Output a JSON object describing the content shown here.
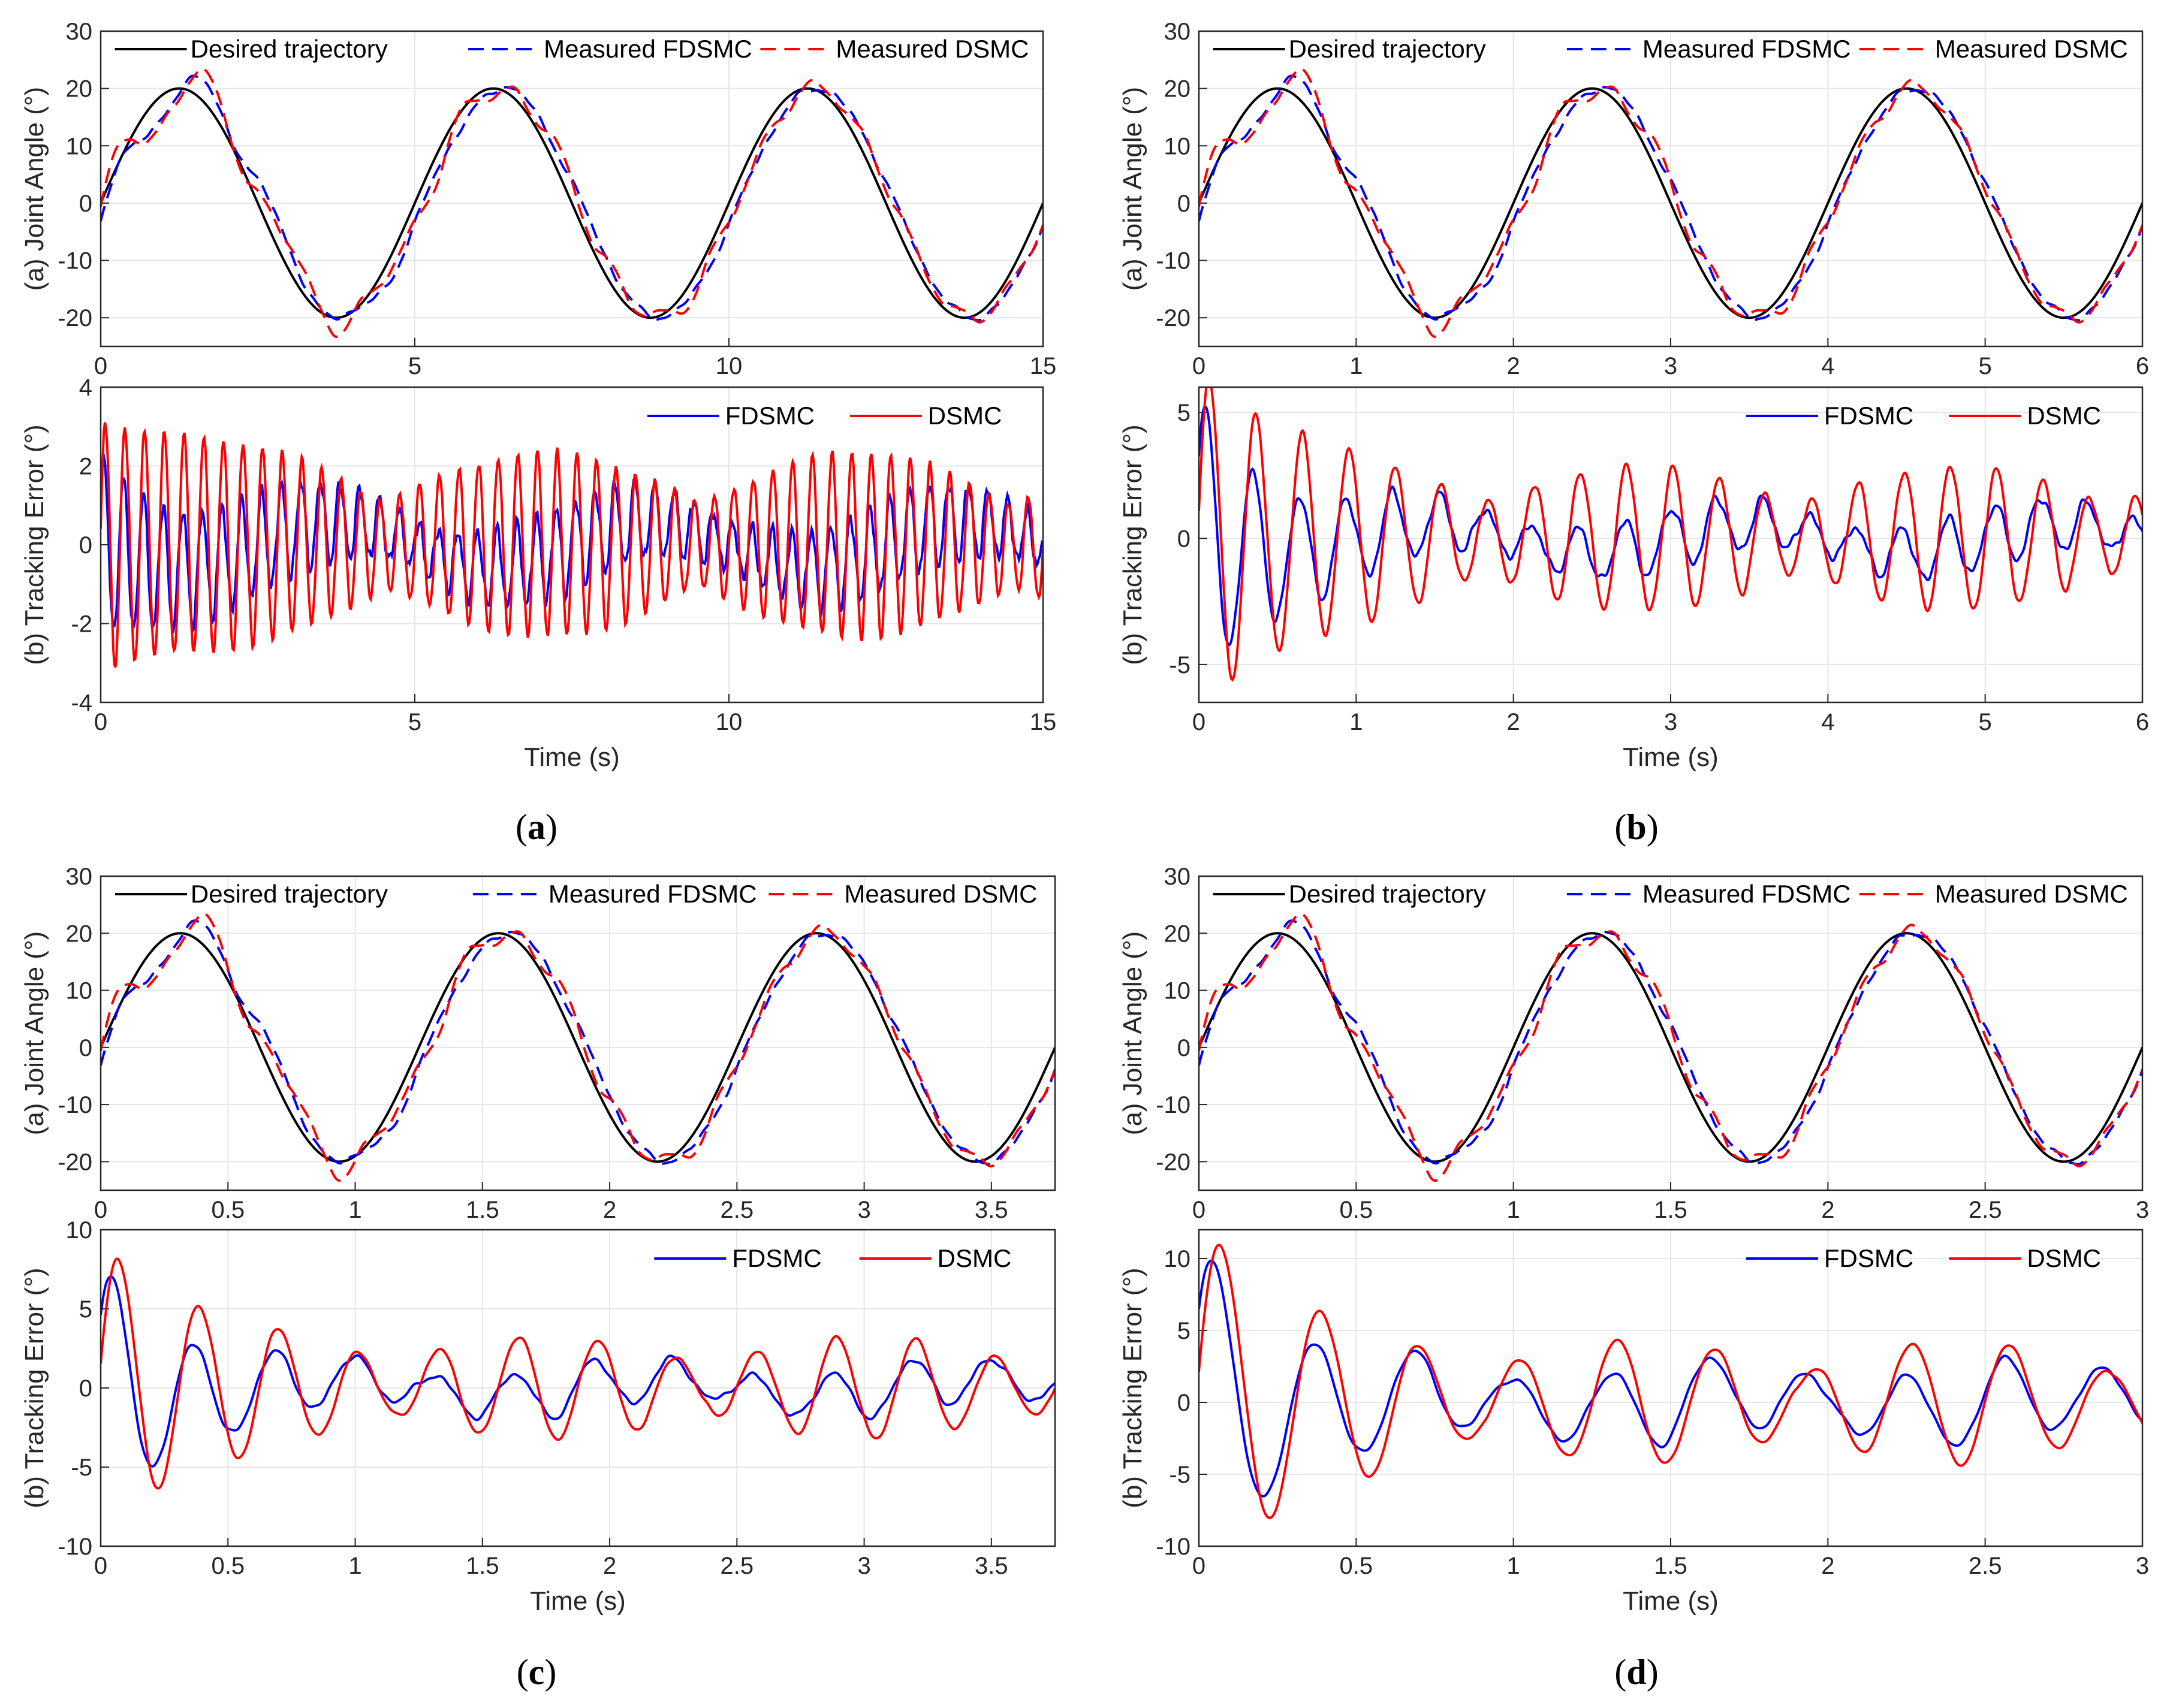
{
  "colors": {
    "desired": "#000000",
    "fdsmc": "#0000ff",
    "dsmc": "#ff0000",
    "grid": "#e6e6e6",
    "axis": "#262626"
  },
  "chart_data": [
    {
      "panel_label": "a",
      "caption": {
        "open": "(",
        "letter": "a",
        "close": ")"
      },
      "angle_chart": {
        "type": "line",
        "ylabel": "(a) Joint Angle (°)",
        "xlim": [
          0,
          15
        ],
        "ylim": [
          -25,
          30
        ],
        "xticks": [
          "0",
          "5",
          "10",
          "15"
        ],
        "xtick_values": [
          0,
          5,
          10,
          15
        ],
        "yticks": [
          "-20",
          "-10",
          "0",
          "10",
          "20",
          "30"
        ],
        "ytick_values": [
          -20,
          -10,
          0,
          10,
          20,
          30
        ],
        "period": 5,
        "amplitude": 20,
        "legend": [
          "Desired trajectory",
          "Measured FDSMC",
          "Measured DSMC"
        ]
      },
      "error_chart": {
        "type": "line",
        "ylabel": "(b) Tracking Error (°)",
        "xlabel": "Time (s)",
        "xlim": [
          0,
          15
        ],
        "ylim": [
          -4,
          4
        ],
        "xticks": [
          "0",
          "5",
          "10",
          "15"
        ],
        "xtick_values": [
          0,
          5,
          10,
          15
        ],
        "yticks": [
          "-4",
          "-2",
          "0",
          "2",
          "4"
        ],
        "ytick_values": [
          -4,
          -2,
          0,
          2,
          4
        ],
        "legend": [
          "FDSMC",
          "DSMC"
        ],
        "fdsmc_amp": 1.4,
        "dsmc_amp": 2.6,
        "osc_freq": 2.0,
        "init_amp": 1.8
      }
    },
    {
      "panel_label": "b",
      "caption": {
        "open": "(",
        "letter": "b",
        "close": ")"
      },
      "angle_chart": {
        "type": "line",
        "ylabel": "(a) Joint Angle (°)",
        "xlim": [
          0,
          6
        ],
        "ylim": [
          -25,
          30
        ],
        "xticks": [
          "0",
          "1",
          "2",
          "3",
          "4",
          "5",
          "6"
        ],
        "xtick_values": [
          0,
          1,
          2,
          3,
          4,
          5,
          6
        ],
        "yticks": [
          "-20",
          "-10",
          "0",
          "10",
          "20",
          "30"
        ],
        "ytick_values": [
          -20,
          -10,
          0,
          10,
          20,
          30
        ],
        "period": 2,
        "amplitude": 20,
        "legend": [
          "Desired trajectory",
          "Measured FDSMC",
          "Measured DSMC"
        ]
      },
      "error_chart": {
        "type": "line",
        "ylabel": "(b) Tracking Error (°)",
        "xlabel": "Time (s)",
        "xlim": [
          0,
          6
        ],
        "ylim": [
          -6.5,
          6
        ],
        "xticks": [
          "0",
          "1",
          "2",
          "3",
          "4",
          "5",
          "6"
        ],
        "xtick_values": [
          0,
          1,
          2,
          3,
          4,
          5,
          6
        ],
        "yticks": [
          "-5",
          "0",
          "5"
        ],
        "ytick_values": [
          -5,
          0,
          5
        ],
        "legend": [
          "FDSMC",
          "DSMC"
        ],
        "fdsmc_amp": 1.5,
        "dsmc_amp": 3.2,
        "osc_freq": 3.4,
        "init_amp": 5.2
      }
    },
    {
      "panel_label": "c",
      "caption": {
        "open": "(",
        "letter": "c",
        "close": ")"
      },
      "angle_chart": {
        "type": "line",
        "ylabel": "(a) Joint Angle (°)",
        "xlim": [
          0,
          3.75
        ],
        "ylim": [
          -25,
          30
        ],
        "xticks": [
          "0",
          "0.5",
          "1",
          "1.5",
          "2",
          "2.5",
          "3",
          "3.5"
        ],
        "xtick_values": [
          0,
          0.5,
          1,
          1.5,
          2,
          2.5,
          3,
          3.5
        ],
        "yticks": [
          "-20",
          "-10",
          "0",
          "10",
          "20",
          "30"
        ],
        "ytick_values": [
          -20,
          -10,
          0,
          10,
          20,
          30
        ],
        "period": 1.25,
        "amplitude": 20,
        "legend": [
          "Desired trajectory",
          "Measured FDSMC",
          "Measured DSMC"
        ]
      },
      "error_chart": {
        "type": "line",
        "ylabel": "(b) Tracking Error (°)",
        "xlabel": "Time (s)",
        "xlim": [
          0,
          3.75
        ],
        "ylim": [
          -10,
          10
        ],
        "xticks": [
          "0",
          "0.5",
          "1",
          "1.5",
          "2",
          "2.5",
          "3",
          "3.5"
        ],
        "xtick_values": [
          0,
          0.5,
          1,
          1.5,
          2,
          2.5,
          3,
          3.5
        ],
        "yticks": [
          "-10",
          "-5",
          "0",
          "5",
          "10"
        ],
        "ytick_values": [
          -10,
          -5,
          0,
          5,
          10
        ],
        "legend": [
          "FDSMC",
          "DSMC"
        ],
        "fdsmc_amp": 2.0,
        "dsmc_amp": 3.6,
        "osc_freq": 3.2,
        "init_amp": 7.5
      }
    },
    {
      "panel_label": "d",
      "caption": {
        "open": "(",
        "letter": "d",
        "close": ")"
      },
      "angle_chart": {
        "type": "line",
        "ylabel": "(a) Joint Angle (°)",
        "xlim": [
          0,
          3
        ],
        "ylim": [
          -25,
          30
        ],
        "xticks": [
          "0",
          "0.5",
          "1",
          "1.5",
          "2",
          "2.5",
          "3"
        ],
        "xtick_values": [
          0,
          0.5,
          1,
          1.5,
          2,
          2.5,
          3
        ],
        "yticks": [
          "-20",
          "-10",
          "0",
          "10",
          "20",
          "30"
        ],
        "ytick_values": [
          -20,
          -10,
          0,
          10,
          20,
          30
        ],
        "period": 1,
        "amplitude": 20,
        "legend": [
          "Desired trajectory",
          "Measured FDSMC",
          "Measured DSMC"
        ]
      },
      "error_chart": {
        "type": "line",
        "ylabel": "(b) Tracking Error (°)",
        "xlabel": "Time (s)",
        "xlim": [
          0,
          3
        ],
        "ylim": [
          -10,
          12
        ],
        "xticks": [
          "0",
          "0.5",
          "1",
          "1.5",
          "2",
          "2.5",
          "3"
        ],
        "xtick_values": [
          0,
          0.5,
          1,
          1.5,
          2,
          2.5,
          3
        ],
        "yticks": [
          "-10",
          "-5",
          "0",
          "5",
          "10"
        ],
        "ytick_values": [
          -10,
          -5,
          0,
          5,
          10
        ],
        "legend": [
          "FDSMC",
          "DSMC"
        ],
        "fdsmc_amp": 3.5,
        "dsmc_amp": 4.8,
        "osc_freq": 3.2,
        "init_amp": 10.5
      }
    }
  ]
}
